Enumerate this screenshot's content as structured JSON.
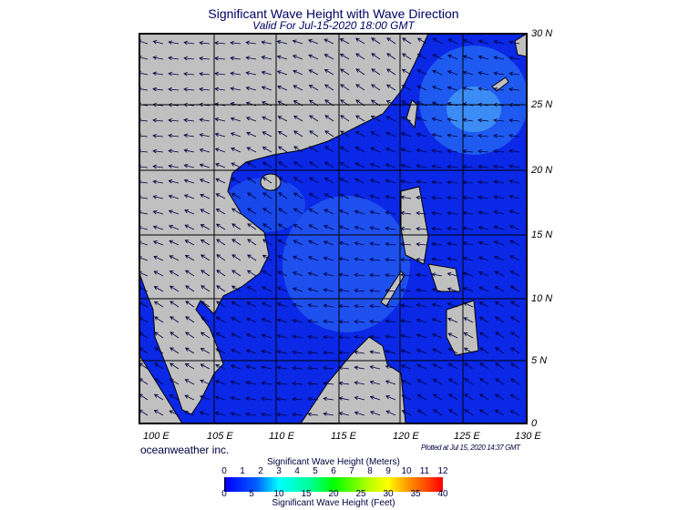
{
  "title": "Significant Wave Height with Wave Direction",
  "subtitle": "Valid For Jul-15-2020 18:00 GMT",
  "lat_labels": [
    "30 N",
    "25 N",
    "20 N",
    "15 N",
    "10 N",
    "5 N",
    "0"
  ],
  "lon_labels": [
    "100 E",
    "105 E",
    "110 E",
    "115 E",
    "120 E",
    "125 E",
    "130 E"
  ],
  "credit": "oceanweather inc.",
  "plotted": "Plotted at Jul 15, 2020 14:37 GMT",
  "legend": {
    "meters_title": "Significant Wave Height (Meters)",
    "meters_ticks": [
      "0",
      "1",
      "2",
      "3",
      "4",
      "5",
      "6",
      "7",
      "8",
      "9",
      "10",
      "11",
      "12"
    ],
    "feet_title": "Significant Wave Height (Feet)",
    "feet_ticks": [
      "0",
      "5",
      "10",
      "15",
      "20",
      "25",
      "30",
      "35",
      "40"
    ],
    "colors": [
      "#000000",
      "#0000ff",
      "#0080ff",
      "#00ffff",
      "#00ff80",
      "#00ff00",
      "#80ff00",
      "#ffff00",
      "#ff8000",
      "#ff0000"
    ]
  },
  "colors": {
    "land": "#c0c0c0",
    "sea_low": "#0a28e6",
    "sea_mid": "#1e5af0",
    "sea_high": "#3c8cf5"
  }
}
